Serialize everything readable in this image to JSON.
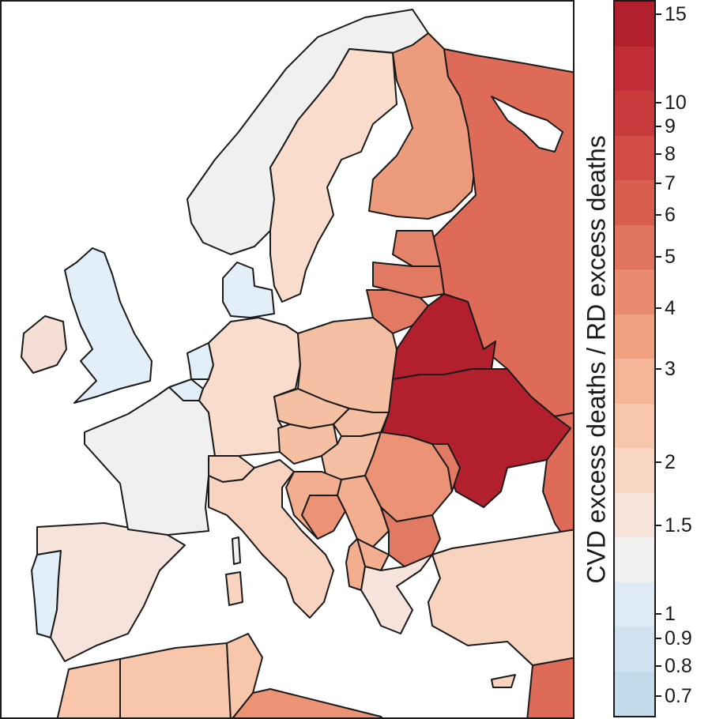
{
  "legend": {
    "title": "CVD excess deaths / RD excess deaths",
    "ticks": [
      "15",
      "10",
      "9",
      "8",
      "7",
      "6",
      "5",
      "4",
      "3",
      "2",
      "1.5",
      "1",
      "0.9",
      "0.8",
      "0.7"
    ],
    "colors": [
      "#b2202e",
      "#c02d36",
      "#c93a3c",
      "#d04c45",
      "#d85e4f",
      "#e0735d",
      "#e98b6e",
      "#f1a180",
      "#f5b597",
      "#f8c6ab",
      "#f9d6c2",
      "#f6e4da",
      "#f1f0f1",
      "#deebf5",
      "#d1e3f0",
      "#c3dcec"
    ]
  },
  "countries": [
    {
      "name": "United Kingdom",
      "color": "#e2eef8"
    },
    {
      "name": "Ireland",
      "color": "#f5dfd4"
    },
    {
      "name": "Portugal",
      "color": "#e2eef8"
    },
    {
      "name": "Spain",
      "color": "#f5e3dc"
    },
    {
      "name": "France",
      "color": "#f1f0f1"
    },
    {
      "name": "Belgium",
      "color": "#e2eef8"
    },
    {
      "name": "Netherlands",
      "color": "#e2eef8"
    },
    {
      "name": "Germany",
      "color": "#f9dccb"
    },
    {
      "name": "Denmark",
      "color": "#e2eef8"
    },
    {
      "name": "Norway",
      "color": "#f1f0f1"
    },
    {
      "name": "Sweden",
      "color": "#f9dccb"
    },
    {
      "name": "Finland",
      "color": "#ec9b7c"
    },
    {
      "name": "Russia",
      "color": "#dd6b57"
    },
    {
      "name": "Estonia",
      "color": "#e5836a"
    },
    {
      "name": "Latvia",
      "color": "#e27a63"
    },
    {
      "name": "Lithuania",
      "color": "#e27a63"
    },
    {
      "name": "Belarus",
      "color": "#b2202e"
    },
    {
      "name": "Ukraine",
      "color": "#b2202e"
    },
    {
      "name": "Poland",
      "color": "#f5bfa4"
    },
    {
      "name": "Czechia",
      "color": "#f5bfa4"
    },
    {
      "name": "Slovakia",
      "color": "#f5bfa4"
    },
    {
      "name": "Austria",
      "color": "#f5bfa4"
    },
    {
      "name": "Switzerland",
      "color": "#f8d4c0"
    },
    {
      "name": "Italy",
      "color": "#f8d4c0"
    },
    {
      "name": "Hungary",
      "color": "#f5bfa4"
    },
    {
      "name": "Romania",
      "color": "#ec9275"
    },
    {
      "name": "Moldova",
      "color": "#e27a63"
    },
    {
      "name": "Bulgaria",
      "color": "#e27a63"
    },
    {
      "name": "Serbia",
      "color": "#f3ae8f"
    },
    {
      "name": "Croatia",
      "color": "#f3ae8f"
    },
    {
      "name": "Bosnia",
      "color": "#ec9275"
    },
    {
      "name": "Albania",
      "color": "#f3ae8f"
    },
    {
      "name": "North Macedonia",
      "color": "#f3ae8f"
    },
    {
      "name": "Greece",
      "color": "#f5e3dc"
    },
    {
      "name": "Turkey",
      "color": "#f8d4c0"
    },
    {
      "name": "Morocco",
      "color": "#f8c6ab"
    },
    {
      "name": "Algeria",
      "color": "#f8c6ab"
    },
    {
      "name": "Tunisia",
      "color": "#f8c6ab"
    },
    {
      "name": "Libya",
      "color": "#ec9275"
    },
    {
      "name": "Syria",
      "color": "#dd6b57"
    },
    {
      "name": "Cyprus",
      "color": "#f8d4c0"
    },
    {
      "name": "Sardinia",
      "color": "#f8d4c0"
    },
    {
      "name": "Corsica",
      "color": "#f1f0f1"
    }
  ]
}
